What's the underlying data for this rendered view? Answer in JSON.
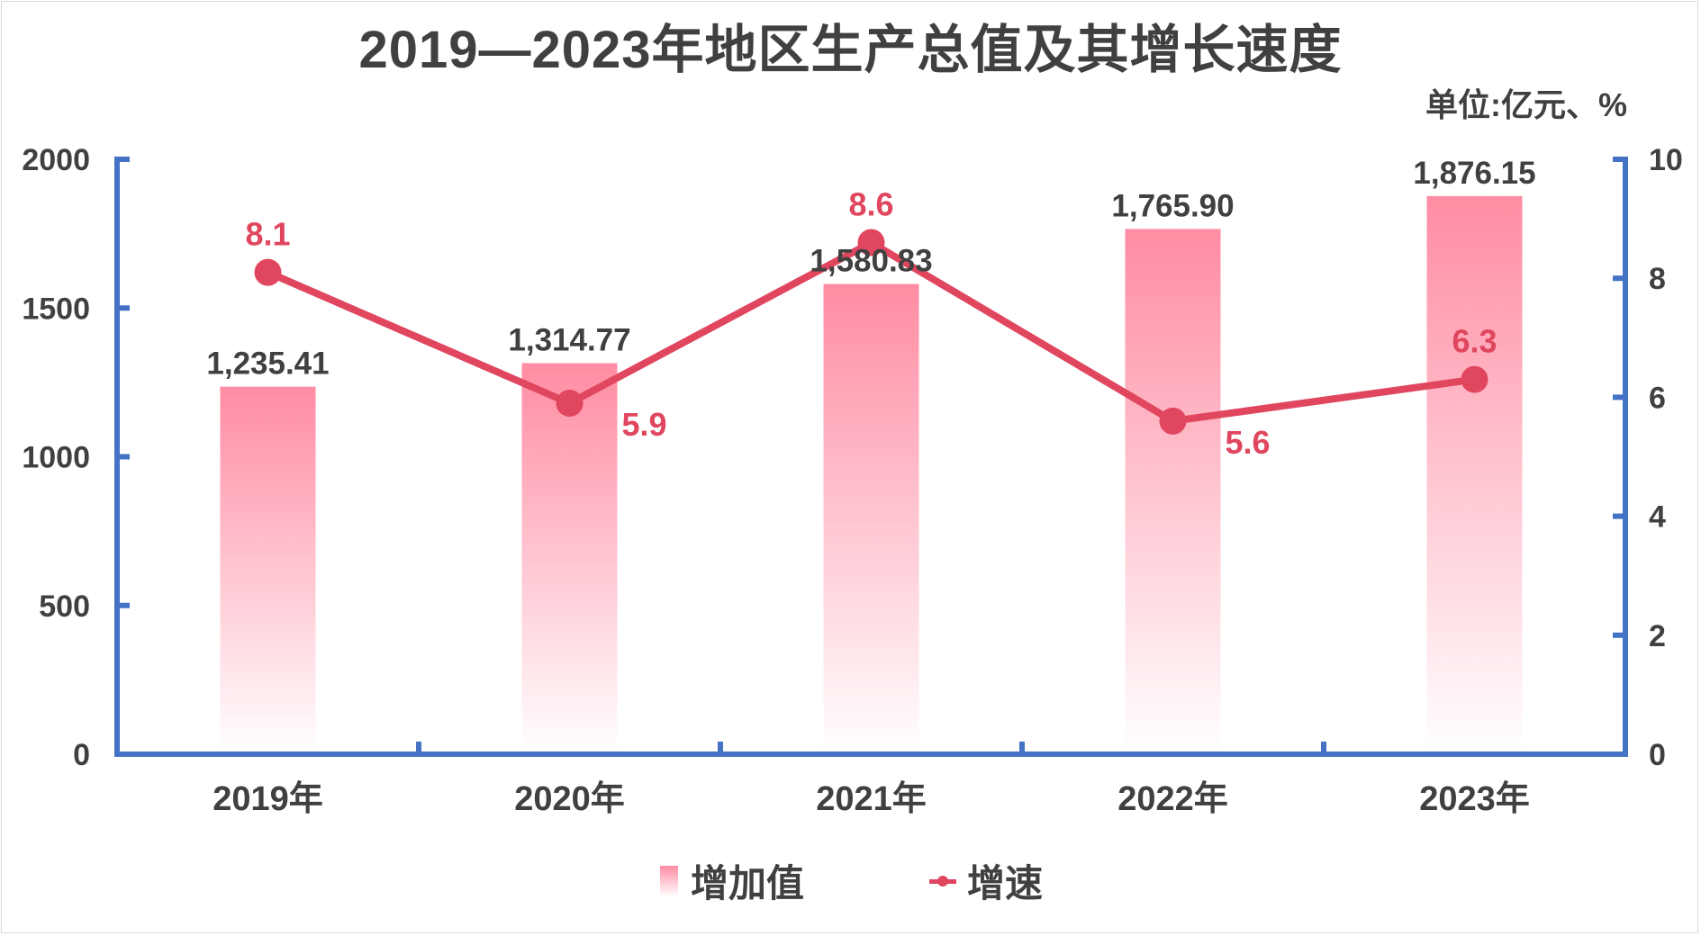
{
  "title": "2019—2023年地区生产总值及其增长速度",
  "unit": "单位:亿元、%",
  "colors": {
    "bar_top": "#ff8ca3",
    "bar_bottom": "#ffffff",
    "line": "#e0475f",
    "axis": "#4472c4",
    "text": "#404040"
  },
  "legend": {
    "bar_label": "增加值",
    "line_label": "增速"
  },
  "chart_data": {
    "type": "bar",
    "title": "2019—2023年地区生产总值及其增长速度",
    "categories": [
      "2019年",
      "2020年",
      "2021年",
      "2022年",
      "2023年"
    ],
    "series": [
      {
        "name": "增加值",
        "type": "bar",
        "axis": "left",
        "values": [
          1235.41,
          1314.77,
          1580.83,
          1765.9,
          1876.15
        ],
        "labels": [
          "1,235.41",
          "1,314.77",
          "1,580.83",
          "1,765.90",
          "1,876.15"
        ]
      },
      {
        "name": "增速",
        "type": "line",
        "axis": "right",
        "values": [
          8.1,
          5.9,
          8.6,
          5.6,
          6.3
        ],
        "labels": [
          "8.1",
          "5.9",
          "8.6",
          "5.6",
          "6.3"
        ]
      }
    ],
    "y_left": {
      "range": [
        0,
        2000
      ],
      "ticks": [
        "0",
        "500",
        "1000",
        "1500",
        "2000"
      ]
    },
    "y_right": {
      "range": [
        0,
        10
      ],
      "ticks": [
        "0",
        "2",
        "4",
        "6",
        "8",
        "10"
      ]
    },
    "grid": false,
    "legend_position": "bottom"
  }
}
